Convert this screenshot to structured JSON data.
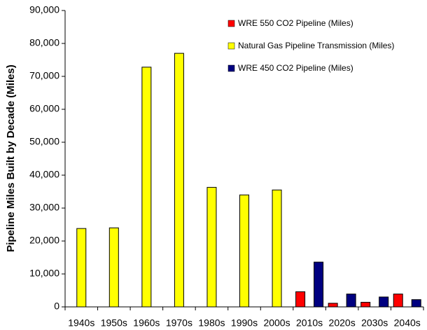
{
  "chart_data": {
    "type": "bar",
    "y_label": "Pipeline Miles Built by Decade (Miles)",
    "categories": [
      "1940s",
      "1950s",
      "1960s",
      "1970s",
      "1980s",
      "1990s",
      "2000s",
      "2010s",
      "2020s",
      "2030s",
      "2040s"
    ],
    "series": [
      {
        "name": "WRE 550 CO2 Pipeline (Miles)",
        "color": "#ff0000",
        "values": [
          null,
          null,
          null,
          null,
          null,
          null,
          null,
          4600,
          1100,
          1400,
          3900
        ]
      },
      {
        "name": "Natural Gas Pipeline Transmission (Miles)",
        "color": "#ffff00",
        "values": [
          23800,
          24000,
          72800,
          77000,
          36300,
          34000,
          35500,
          null,
          null,
          null,
          null
        ]
      },
      {
        "name": "WRE 450 CO2 Pipeline (Miles)",
        "color": "#000080",
        "values": [
          null,
          null,
          null,
          null,
          null,
          null,
          null,
          13600,
          3900,
          3000,
          2200
        ]
      }
    ],
    "ylim": [
      0,
      90000
    ],
    "yticks": [
      0,
      {
        "value": 10000,
        "label": "10,000"
      },
      {
        "value": 20000,
        "label": "20,000"
      },
      {
        "value": 30000,
        "label": "30,000"
      },
      {
        "value": 40000,
        "label": "40,000"
      },
      {
        "value": 50000,
        "label": "50,000"
      },
      {
        "value": 60000,
        "label": "60,000"
      },
      {
        "value": 70000,
        "label": "70,000"
      },
      {
        "value": 80000,
        "label": "80,000"
      },
      {
        "value": 90000,
        "label": "90,000"
      }
    ],
    "grid": false,
    "legend": "upper right"
  }
}
